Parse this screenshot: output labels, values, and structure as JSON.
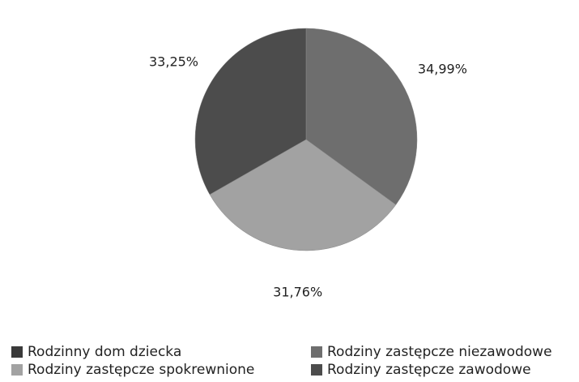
{
  "chart_data": {
    "type": "pie",
    "categories": [
      "Rodzinny dom dziecka",
      "Rodziny zastępcze niezawodowe",
      "Rodziny zastępcze spokrewnione",
      "Rodziny zastępcze zawodowe"
    ],
    "values": [
      0,
      34.99,
      31.76,
      33.25
    ],
    "value_labels": [
      null,
      "34,99%",
      "31,76%",
      "33,25%"
    ],
    "colors": [
      "#3a3a3a",
      "#6e6e6e",
      "#a2a2a2",
      "#4c4c4c"
    ],
    "legend": "bottom"
  }
}
